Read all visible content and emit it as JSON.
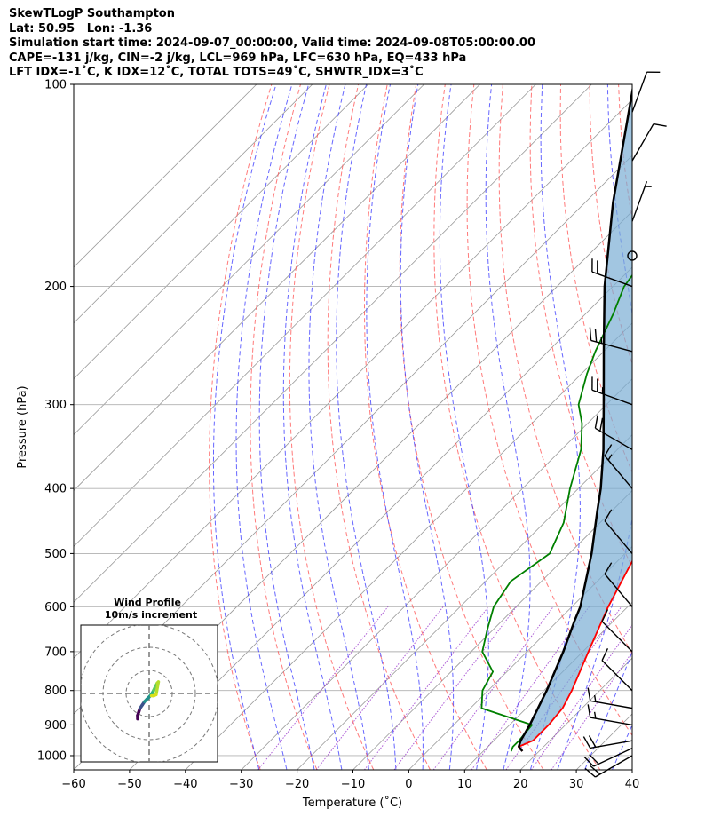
{
  "header": {
    "line1": "SkewTLogP Southampton",
    "line2": "Lat: 50.95   Lon: -1.36",
    "line3": "Simulation start time: 2024-09-07_00:00:00, Valid time: 2024-09-08T05:00:00.00",
    "line4": "CAPE=-131 j/kg, CIN=-2 j/kg, LCL=969 hPa, LFC=630 hPa, EQ=433 hPa",
    "line5": "LFT IDX=-1˚C, K IDX=12˚C, TOTAL TOTS=49˚C, SHWTR_IDX=3˚C"
  },
  "colors": {
    "temperature": "#ff0000",
    "dewpoint": "#008000",
    "parcel": "#000000",
    "cape_fill": "#ff5555",
    "cin_fill": "#7aaed4",
    "dry_adiabat": "#ff4d4d",
    "moist_adiabat": "#3333ff",
    "mixing_ratio": "#9933cc",
    "isotherm": "#999999",
    "isobar": "#b0b0b0"
  },
  "chart_data": {
    "type": "line",
    "title": "",
    "xlabel": "Temperature (˚C)",
    "ylabel": "Pressure (hPa)",
    "xlim": [
      -60,
      40
    ],
    "ylim": [
      1050,
      100
    ],
    "y_scale": "log",
    "x_ticks": [
      "−60",
      "−50",
      "−40",
      "−30",
      "−20",
      "−10",
      "0",
      "10",
      "20",
      "30",
      "40"
    ],
    "y_ticks": [
      "100",
      "200",
      "300",
      "400",
      "500",
      "600",
      "700",
      "800",
      "900",
      "1000"
    ],
    "grid": true,
    "series": [
      {
        "key": "temperature",
        "pressure": [
          985,
          970,
          950,
          900,
          850,
          800,
          700,
          600,
          500,
          450,
          400,
          350,
          320,
          300,
          280,
          250,
          220,
          200,
          180,
          160,
          140,
          120,
          110,
          100
        ],
        "temperature": [
          17.0,
          15.5,
          17.0,
          17.0,
          16.5,
          15.0,
          11.0,
          6.5,
          2.0,
          1.0,
          0.0,
          -2.0,
          -3.0,
          -3.0,
          -3.0,
          -4.0,
          -5.0,
          -5.5,
          -6.5,
          -8.0,
          -8.5,
          -10.0,
          -11.0,
          -12.0
        ]
      },
      {
        "key": "dewpoint",
        "pressure": [
          985,
          970,
          950,
          900,
          850,
          800,
          750,
          700,
          650,
          600,
          550,
          500,
          450,
          400,
          350,
          320,
          300,
          270,
          250,
          220,
          200,
          180,
          160,
          140,
          120,
          110,
          100
        ],
        "temperature": [
          15.0,
          14.5,
          14.5,
          14.0,
          2.0,
          -1.0,
          -2.5,
          -8.0,
          -11.0,
          -14.0,
          -15.5,
          -13.5,
          -16.5,
          -21.5,
          -26.5,
          -31.0,
          -35.0,
          -39.0,
          -41.5,
          -45.0,
          -48.0,
          -49.5,
          -50.0,
          -51.0,
          -49.5,
          -47.5,
          -43.0
        ]
      },
      {
        "key": "parcel",
        "pressure": [
          985,
          969,
          950,
          900,
          850,
          800,
          700,
          630,
          600,
          500,
          433,
          400,
          350,
          300,
          250,
          200,
          150,
          100
        ],
        "temperature": [
          17.0,
          15.5,
          14.8,
          13.6,
          12.1,
          10.5,
          6.5,
          3.0,
          1.5,
          -6.0,
          -12.5,
          -16.0,
          -22.5,
          -30.5,
          -40.0,
          -51.5,
          -65.0,
          -82.5
        ]
      }
    ],
    "skew_degrees": 45,
    "wind_barbs": [
      {
        "p": 1000,
        "speed_kt": 20,
        "dir_deg": 240
      },
      {
        "p": 975,
        "speed_kt": 20,
        "dir_deg": 245
      },
      {
        "p": 950,
        "speed_kt": 20,
        "dir_deg": 260
      },
      {
        "p": 900,
        "speed_kt": 15,
        "dir_deg": 280
      },
      {
        "p": 850,
        "speed_kt": 15,
        "dir_deg": 280
      },
      {
        "p": 800,
        "speed_kt": 10,
        "dir_deg": 315
      },
      {
        "p": 700,
        "speed_kt": 10,
        "dir_deg": 315
      },
      {
        "p": 600,
        "speed_kt": 10,
        "dir_deg": 320
      },
      {
        "p": 500,
        "speed_kt": 10,
        "dir_deg": 320
      },
      {
        "p": 400,
        "speed_kt": 15,
        "dir_deg": 320
      },
      {
        "p": 350,
        "speed_kt": 20,
        "dir_deg": 300
      },
      {
        "p": 300,
        "speed_kt": 25,
        "dir_deg": 290
      },
      {
        "p": 250,
        "speed_kt": 25,
        "dir_deg": 285
      },
      {
        "p": 200,
        "speed_kt": 20,
        "dir_deg": 290
      },
      {
        "p": 180,
        "speed_kt": 0,
        "dir_deg": 0
      },
      {
        "p": 160,
        "speed_kt": 5,
        "dir_deg": 20
      },
      {
        "p": 130,
        "speed_kt": 10,
        "dir_deg": 30
      },
      {
        "p": 110,
        "speed_kt": 10,
        "dir_deg": 20
      }
    ],
    "hodograph": {
      "title_line1": "Wind Profile",
      "title_line2": "10m/s increment",
      "ring_increment_ms": 10,
      "u": [
        -5.0,
        -5.0,
        -4.5,
        -4.0,
        -3.0,
        -2.0,
        -1.0,
        0.0,
        0.8,
        1.5,
        2.0,
        2.5,
        3.0,
        3.5,
        4.0,
        3.0,
        2.0,
        1.0
      ],
      "v": [
        -11.0,
        -9.5,
        -8.0,
        -6.5,
        -5.0,
        -3.5,
        -2.5,
        -1.5,
        -0.5,
        0.5,
        1.5,
        2.5,
        3.5,
        4.5,
        5.0,
        -0.5,
        -1.0,
        -1.0
      ]
    }
  }
}
